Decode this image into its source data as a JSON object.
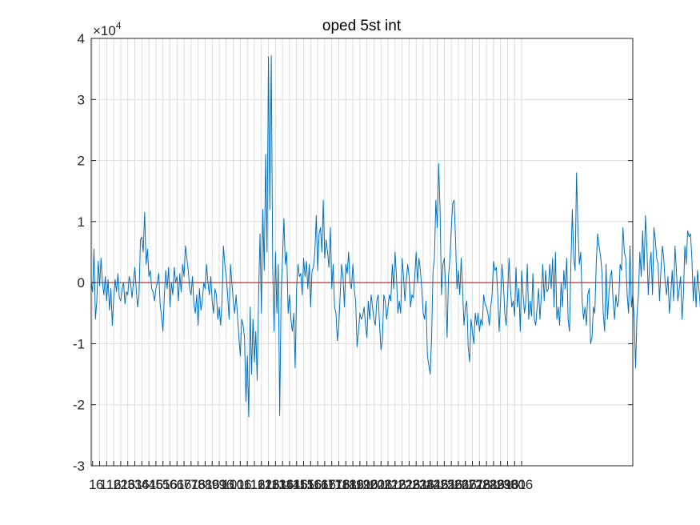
{
  "chart_data": {
    "type": "line",
    "title": "oped 5st int",
    "xlabel": "",
    "ylabel": "",
    "y_exponent_base": "×10",
    "y_exponent_power": "4",
    "xlim": [
      0,
      385
    ],
    "ylim": [
      -3,
      4
    ],
    "y_ticks": [
      -3,
      -2,
      -1,
      0,
      1,
      2,
      3,
      4
    ],
    "x_ticks": [
      1,
      6,
      11,
      16,
      21,
      26,
      31,
      36,
      41,
      46,
      51,
      56,
      61,
      66,
      71,
      76,
      81,
      86,
      91,
      96,
      101,
      106,
      111,
      116,
      121,
      126,
      131,
      136,
      141,
      146,
      151,
      156,
      161,
      166,
      171,
      176,
      181,
      186,
      191,
      196,
      201,
      206,
      211,
      216,
      221,
      226,
      231,
      236,
      241,
      246,
      251,
      256,
      261,
      266,
      271,
      276,
      281,
      286,
      291,
      296,
      301,
      306
    ],
    "x_tick_labels": [
      "1",
      "6",
      "11",
      "16",
      "21",
      "26",
      "31",
      "36",
      "41",
      "46",
      "51",
      "56",
      "61",
      "66",
      "71",
      "76",
      "81",
      "86",
      "91",
      "96",
      "101",
      "106",
      "111",
      "116",
      "121",
      "126",
      "131",
      "136",
      "141",
      "146",
      "151",
      "156",
      "161",
      "166",
      "171",
      "176",
      "181",
      "186",
      "191",
      "196",
      "201",
      "206",
      "211",
      "216",
      "221",
      "226",
      "231",
      "236",
      "241",
      "246",
      "251",
      "256",
      "261",
      "266",
      "271",
      "276",
      "281",
      "286",
      "291",
      "296",
      "301",
      "306"
    ],
    "grid": true,
    "series": [
      {
        "color": "#0072BD",
        "values": [
          0,
          -0.15,
          0.55,
          -0.6,
          -0.3,
          0.35,
          -0.05,
          0.4,
          0,
          -0.2,
          0.1,
          -0.3,
          0.05,
          -0.45,
          -0.1,
          -0.7,
          -0.25,
          0.05,
          -0.15,
          0.15,
          -0.25,
          -0.3,
          -0.1,
          0,
          -0.35,
          -0.15,
          -0.2,
          0.1,
          0,
          -0.25,
          0,
          0.25,
          -0.1,
          -0.4,
          -0.2,
          0.7,
          0.75,
          0.5,
          1.15,
          0.3,
          0.55,
          0.1,
          0.2,
          -0.1,
          -0.15,
          -0.3,
          -0.1,
          0,
          0.15,
          -0.35,
          -0.55,
          -0.8,
          -0.2,
          0.2,
          -0.1,
          0.25,
          -0.4,
          0,
          -0.2,
          0.25,
          0,
          0.1,
          -0.3,
          0.15,
          -0.15,
          0.3,
          0.1,
          0.6,
          0.4,
          0.2,
          -0.1,
          -0.2,
          0.1,
          -0.35,
          -0.5,
          -0.2,
          -0.7,
          -0.1,
          -0.45,
          -0.3,
          0,
          -0.1,
          0.3,
          0,
          -0.2,
          0.1,
          -0.3,
          -0.5,
          -0.1,
          -0.2,
          -0.6,
          -0.4,
          -0.7,
          -0.3,
          0.6,
          0.3,
          0.1,
          -0.2,
          -0.6,
          0.3,
          0,
          -0.3,
          -0.5,
          -0.2,
          -0.55,
          -0.9,
          -1.2,
          -0.6,
          -0.7,
          -0.9,
          -1.95,
          -1.2,
          -2.2,
          -0.4,
          -1.5,
          -0.6,
          -1.3,
          -0.8,
          -1.6,
          -0.2,
          0.8,
          -0.5,
          1.2,
          0.2,
          2.1,
          0.5,
          3.7,
          1.2,
          3.72,
          0.3,
          -0.8,
          0.5,
          -0.5,
          0.3,
          -2.18,
          -0.2,
          0.4,
          1.05,
          0.3,
          0.5,
          -0.5,
          -0.2,
          -0.6,
          -0.8,
          -0.5,
          -1.4,
          -0.1,
          0.3,
          0.1,
          0.15,
          -0.2,
          0.4,
          0.1,
          0.35,
          -0.1,
          0.3,
          -0.4,
          0.2,
          0.25,
          0.5,
          1.1,
          0.2,
          0.8,
          0.9,
          0.5,
          1.35,
          0.4,
          0.7,
          0.5,
          0.25,
          0.9,
          -0.1,
          0.3,
          -0.4,
          -0.5,
          -0.95,
          -0.7,
          -0.2,
          0.3,
          0.1,
          -0.4,
          0.3,
          0.15,
          0.5,
          0,
          -0.1,
          0.3,
          -0.1,
          -0.3,
          -1.05,
          -0.8,
          -0.5,
          -0.6,
          -0.55,
          -0.4,
          -0.7,
          -0.9,
          -0.3,
          -0.6,
          -0.2,
          -0.4,
          -0.6,
          -0.7,
          -0.3,
          -0.2,
          -0.7,
          -1.1,
          -0.95,
          -0.2,
          -0.3,
          -0.6,
          -0.4,
          -0.2,
          -0.3,
          0.3,
          -0.1,
          0.5,
          0.1,
          -0.5,
          -0.3,
          -0.5,
          0.4,
          0.1,
          -0.3,
          0.05,
          0.3,
          0.1,
          -0.4,
          -0.2,
          -0.25,
          0.1,
          0.5,
          0,
          0.4,
          0.2,
          -0.1,
          -0.5,
          -0.6,
          -0.3,
          -1.2,
          -1.35,
          -1.5,
          -0.9,
          0.2,
          0.4,
          1.35,
          0.9,
          1.95,
          1.2,
          -0.2,
          0.3,
          0.4,
          -0.1,
          -0.9,
          0.1,
          0.4,
          0.9,
          1.3,
          1.35,
          0.7,
          -0.1,
          0.2,
          -0.2,
          0.4,
          -0.1,
          -0.7,
          -0.4,
          -0.3,
          -1.05,
          -1.3,
          -0.6,
          -0.8,
          -1,
          -0.5,
          -0.7,
          -0.5,
          -0.8,
          -0.6,
          -0.7,
          -0.2,
          -0.35,
          -0.4,
          -0.5,
          -0.7,
          -0.4,
          -0.2,
          0.35,
          0.2,
          0.25,
          -0.2,
          -0.8,
          -0.3,
          0.3,
          0,
          -0.5,
          -0.7,
          -0.2,
          0.4,
          -0.1,
          -0.4,
          -0.3,
          -0.55,
          0.25,
          -0.4,
          -0.1,
          -0.8,
          0.2,
          -0.2,
          -0.5,
          -0.3,
          0.3,
          -0.6,
          -0.3,
          -0.55,
          0.15,
          -0.6,
          -0.7,
          -0.4,
          -0.1,
          -0.6,
          -0.2,
          0.3,
          -0.3,
          0.2,
          -0.15,
          -0.1,
          0.3,
          -0.1,
          0.4,
          -0.4,
          0.5,
          -0.6,
          -0.4,
          -0.7,
          0,
          -0.4,
          0.2,
          -0.1,
          0.4,
          -0.6,
          -0.8,
          0.3,
          1.2,
          0.4,
          0.2,
          1.8,
          0.9,
          0.3,
          0.5,
          -0.3,
          -0.6,
          -0.4,
          -0.7,
          -0.2,
          -0.1,
          -1,
          -0.9,
          -0.4,
          -0.5,
          0.3,
          0.8,
          0.6,
          0.45,
          0.2,
          -0.5,
          -0.8,
          0.3,
          -0.6,
          -0.2,
          0.1,
          0.2,
          -0.3,
          -0.6,
          -0.2,
          -0.4,
          -0.3,
          0.3,
          0.2,
          0.9,
          0.5,
          0.4,
          -0.2,
          -0.5,
          0.6,
          -0.4,
          -0.2,
          -0.6,
          -1.4,
          -0.5,
          -0.2,
          0.5,
          0.1,
          0.85,
          0.2,
          1.1,
          0.6,
          -0.2,
          0.3,
          0.5,
          -0.2,
          0.9,
          0.7,
          0.4,
          0.3,
          -0.3,
          0.2,
          0.6,
          0.4,
          0,
          -0.2,
          0.1,
          -0.5,
          -0.2,
          0.2,
          -0.3,
          0.6,
          0.2,
          -0.3,
          -0.1,
          0.1,
          -0.6,
          -0.2,
          0.6,
          0.3,
          0.85,
          0.75,
          0.8,
          0.4,
          -0.3,
          0.1,
          -0.4,
          0.2,
          -0.1,
          -0.4,
          0.3,
          0.2,
          -0.3,
          0.1,
          1.05,
          0.8,
          -0.2,
          0.5,
          1,
          0.7,
          1.7,
          1.3,
          0.9,
          0.3,
          -0.6,
          -0.2,
          0.5,
          -0.65,
          0.2,
          -0.2,
          -0.4,
          0.3,
          0,
          -0.5,
          -0.3,
          0.2,
          0.6,
          0.4,
          0.8,
          0.9,
          1.1,
          1.2,
          1.9,
          1.2,
          1.3,
          0.9,
          -0.2,
          0.1,
          0.05
        ]
      },
      {
        "color": "#D62728",
        "zero_line": true
      }
    ]
  }
}
